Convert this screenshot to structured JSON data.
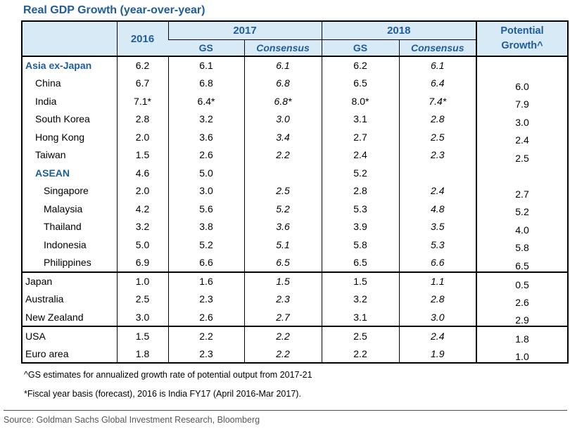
{
  "title": "Real GDP Growth (year-over-year)",
  "colors": {
    "accent_blue": "#1f5c99",
    "header_bg": "#d9eaf7",
    "border": "#000000",
    "source_gray": "#575757"
  },
  "chart_data": {
    "type": "table",
    "title": "Real GDP Growth (year-over-year)",
    "headers": {
      "y2016": "2016",
      "y2017": "2017",
      "y2018": "2018",
      "gs": "GS",
      "consensus": "Consensus",
      "potential_line1": "Potential",
      "potential_line2": "Growth^"
    },
    "columns": [
      "",
      "2016",
      "2017 GS",
      "2017 Consensus",
      "2018 GS",
      "2018 Consensus",
      "Potential Growth^"
    ],
    "rows": [
      {
        "label": "Asia ex-Japan",
        "y2016": "6.2",
        "gs17": "6.1",
        "cons17": "6.1",
        "gs18": "6.2",
        "cons18": "6.1",
        "pot": ""
      },
      {
        "label": "China",
        "y2016": "6.7",
        "gs17": "6.8",
        "cons17": "6.8",
        "gs18": "6.5",
        "cons18": "6.4",
        "pot": "6.0"
      },
      {
        "label": "India",
        "y2016": "7.1*",
        "gs17": "6.4*",
        "cons17": "6.8*",
        "gs18": "8.0*",
        "cons18": "7.4*",
        "pot": "7.9"
      },
      {
        "label": "South Korea",
        "y2016": "2.8",
        "gs17": "3.2",
        "cons17": "3.0",
        "gs18": "3.1",
        "cons18": "2.8",
        "pot": "3.0"
      },
      {
        "label": "Hong Kong",
        "y2016": "2.0",
        "gs17": "3.6",
        "cons17": "3.4",
        "gs18": "2.7",
        "cons18": "2.5",
        "pot": "2.4"
      },
      {
        "label": "Taiwan",
        "y2016": "1.5",
        "gs17": "2.6",
        "cons17": "2.2",
        "gs18": "2.4",
        "cons18": "2.3",
        "pot": "2.5"
      },
      {
        "label": "ASEAN",
        "y2016": "4.6",
        "gs17": "5.0",
        "cons17": "",
        "gs18": "5.2",
        "cons18": "",
        "pot": ""
      },
      {
        "label": "Singapore",
        "y2016": "2.0",
        "gs17": "3.0",
        "cons17": "2.5",
        "gs18": "2.8",
        "cons18": "2.4",
        "pot": "2.7"
      },
      {
        "label": "Malaysia",
        "y2016": "4.2",
        "gs17": "5.6",
        "cons17": "5.2",
        "gs18": "5.3",
        "cons18": "4.8",
        "pot": "5.2"
      },
      {
        "label": "Thailand",
        "y2016": "3.2",
        "gs17": "3.8",
        "cons17": "3.6",
        "gs18": "3.9",
        "cons18": "3.5",
        "pot": "4.0"
      },
      {
        "label": "Indonesia",
        "y2016": "5.0",
        "gs17": "5.2",
        "cons17": "5.1",
        "gs18": "5.8",
        "cons18": "5.3",
        "pot": "5.8"
      },
      {
        "label": "Philippines",
        "y2016": "6.9",
        "gs17": "6.6",
        "cons17": "6.5",
        "gs18": "6.5",
        "cons18": "6.6",
        "pot": "6.5"
      },
      {
        "label": "Japan",
        "y2016": "1.0",
        "gs17": "1.6",
        "cons17": "1.5",
        "gs18": "1.5",
        "cons18": "1.1",
        "pot": "0.5"
      },
      {
        "label": "Australia",
        "y2016": "2.5",
        "gs17": "2.3",
        "cons17": "2.3",
        "gs18": "3.2",
        "cons18": "2.8",
        "pot": "2.6"
      },
      {
        "label": "New Zealand",
        "y2016": "3.0",
        "gs17": "2.6",
        "cons17": "2.7",
        "gs18": "3.1",
        "cons18": "3.0",
        "pot": "2.9"
      },
      {
        "label": "USA",
        "y2016": "1.5",
        "gs17": "2.2",
        "cons17": "2.2",
        "gs18": "2.5",
        "cons18": "2.4",
        "pot": "1.8"
      },
      {
        "label": "Euro area",
        "y2016": "1.8",
        "gs17": "2.3",
        "cons17": "2.2",
        "gs18": "2.2",
        "cons18": "1.9",
        "pot": "1.0"
      }
    ]
  },
  "footnotes": {
    "note1": "^GS estimates for annualized growth rate of potential output from 2017-21",
    "note2": "*Fiscal year basis (forecast), 2016 is India FY17 (April 2016-Mar 2017)."
  },
  "source": {
    "text": "Source: Goldman Sachs Global Investment Research, Bloomberg"
  }
}
